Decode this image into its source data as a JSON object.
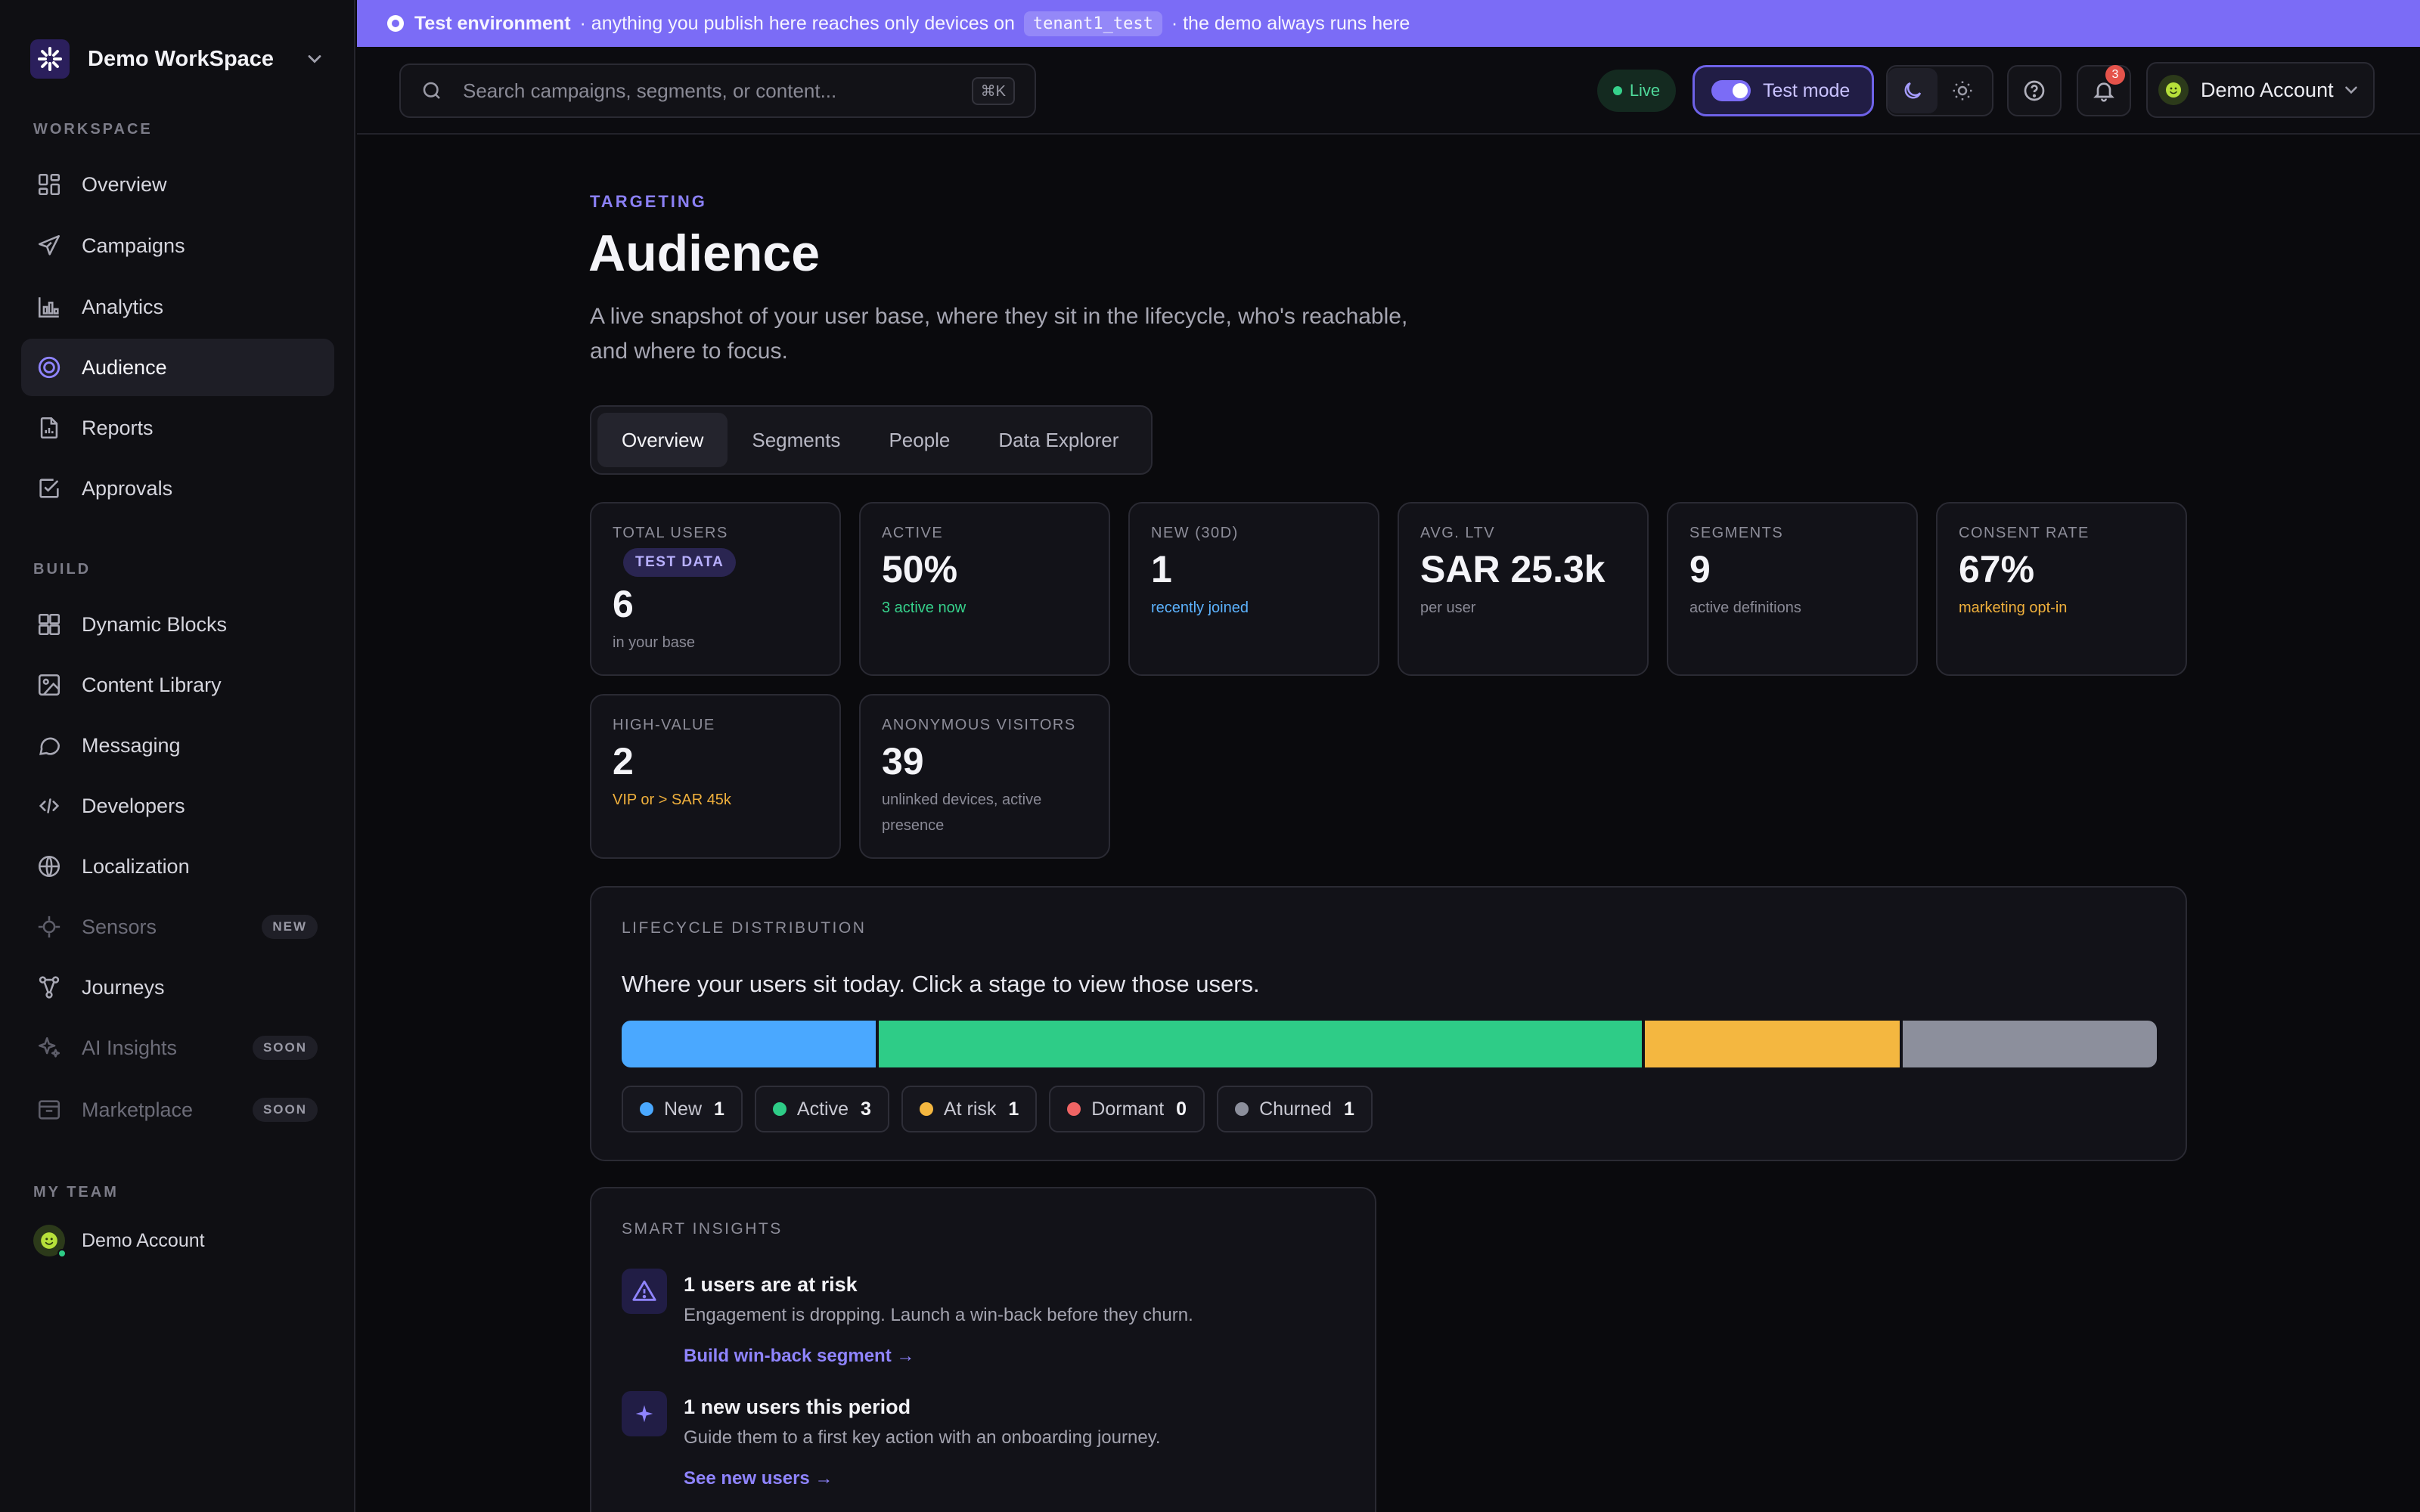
{
  "colors": {
    "accent": "#7b6cf6",
    "new": "#4aa8ff",
    "active": "#2ecc87",
    "at_risk": "#f4b740",
    "dormant": "#ef6464",
    "churned": "#8c8f9c"
  },
  "sidebar": {
    "workspace_name": "Demo WorkSpace",
    "sections": {
      "workspace": "WORKSPACE",
      "build": "BUILD",
      "team": "MY TEAM"
    },
    "workspace_items": [
      {
        "label": "Overview",
        "icon": "grid-icon"
      },
      {
        "label": "Campaigns",
        "icon": "send-icon"
      },
      {
        "label": "Analytics",
        "icon": "bar-chart-icon"
      },
      {
        "label": "Audience",
        "icon": "target-icon",
        "active": true
      },
      {
        "label": "Reports",
        "icon": "file-chart-icon"
      },
      {
        "label": "Approvals",
        "icon": "check-square-icon"
      }
    ],
    "build_items": [
      {
        "label": "Dynamic Blocks",
        "icon": "blocks-icon"
      },
      {
        "label": "Content Library",
        "icon": "image-icon"
      },
      {
        "label": "Messaging",
        "icon": "chat-icon"
      },
      {
        "label": "Developers",
        "icon": "code-icon"
      },
      {
        "label": "Localization",
        "icon": "globe-icon"
      },
      {
        "label": "Sensors",
        "icon": "sensor-icon",
        "badge": "NEW"
      },
      {
        "label": "Journeys",
        "icon": "journey-icon"
      },
      {
        "label": "AI Insights",
        "icon": "sparkle-icon",
        "badge": "SOON"
      },
      {
        "label": "Marketplace",
        "icon": "store-icon",
        "badge": "SOON"
      }
    ],
    "team_member": "Demo Account"
  },
  "banner": {
    "strong": "Test environment",
    "text_before": "· anything you publish here reaches only devices on",
    "code": "tenant1_test",
    "text_after": "· the demo always runs here"
  },
  "topbar": {
    "search_placeholder": "Search campaigns, segments, or content...",
    "search_shortcut": "⌘K",
    "live_label": "Live",
    "test_mode_label": "Test mode",
    "notification_count": "3",
    "account_name": "Demo Account"
  },
  "page": {
    "eyebrow": "TARGETING",
    "title": "Audience",
    "subtitle": "A live snapshot of your user base, where they sit in the lifecycle, who's reachable, and where to focus."
  },
  "tabs": [
    "Overview",
    "Segments",
    "People",
    "Data Explorer"
  ],
  "stats": [
    {
      "label": "TOTAL USERS",
      "chip": "TEST DATA",
      "value": "6",
      "sub": "in your base"
    },
    {
      "label": "ACTIVE",
      "value": "50%",
      "sub": "3 active now"
    },
    {
      "label": "NEW (30D)",
      "value": "1",
      "sub": "recently joined"
    },
    {
      "label": "AVG. LTV",
      "value": "SAR 25.3k",
      "sub": "per user"
    },
    {
      "label": "SEGMENTS",
      "value": "9",
      "sub": "active definitions"
    },
    {
      "label": "CONSENT RATE",
      "value": "67%",
      "sub": "marketing opt-in"
    },
    {
      "label": "HIGH-VALUE",
      "value": "2",
      "sub": "VIP or > SAR 45k"
    },
    {
      "label": "ANONYMOUS VISITORS",
      "value": "39",
      "sub": "unlinked devices, active presence"
    }
  ],
  "lifecycle": {
    "title": "LIFECYCLE DISTRIBUTION",
    "description": "Where your users sit today. Click a stage to view those users.",
    "stages": [
      {
        "label": "New",
        "count": 1
      },
      {
        "label": "Active",
        "count": 3
      },
      {
        "label": "At risk",
        "count": 1
      },
      {
        "label": "Dormant",
        "count": 0
      },
      {
        "label": "Churned",
        "count": 1
      }
    ]
  },
  "insights": {
    "title": "SMART INSIGHTS",
    "items": [
      {
        "icon": "warning-triangle-icon",
        "title": "1 users are at risk",
        "desc": "Engagement is dropping. Launch a win-back before they churn.",
        "link": "Build win-back segment →"
      },
      {
        "icon": "sparkle-icon",
        "title": "1 new users this period",
        "desc": "Guide them to a first key action with an onboarding journey.",
        "link": "See new users →"
      }
    ]
  }
}
